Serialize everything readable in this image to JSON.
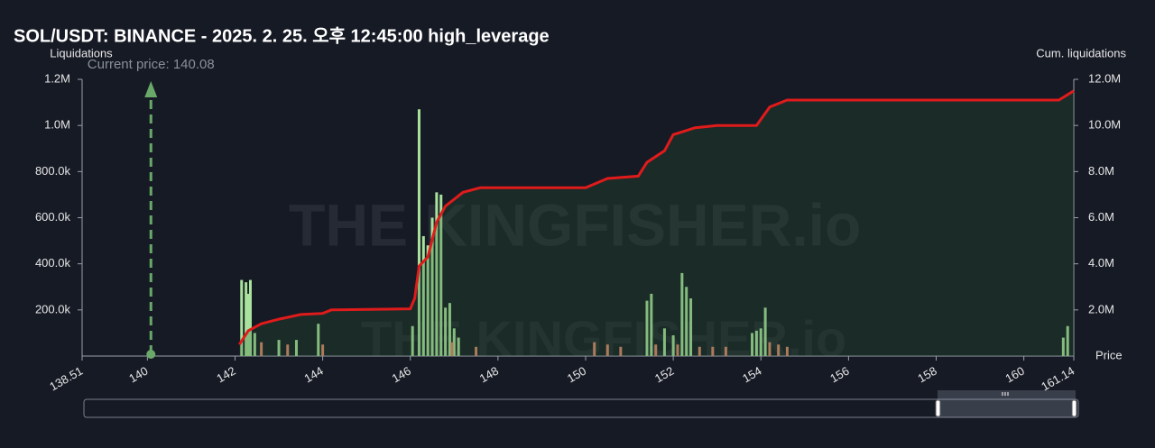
{
  "chart_data": {
    "type": "bar",
    "title": "SOL/USDT: BINANCE - 2025. 2. 25. 오후 12:45:00 high_leverage",
    "ylabel": "Liquidations",
    "y2label": "Cum. liquidations",
    "xlabel": "Price",
    "watermark": "THE KINGFISHER.io",
    "annotation": {
      "text": "Current price: 140.08",
      "x": 140.08,
      "color": "#6aa86a"
    },
    "xlim": [
      138.51,
      161.14
    ],
    "xticks": [
      138.51,
      140,
      142,
      144,
      146,
      148,
      150,
      152,
      154,
      156,
      158,
      160,
      161.14
    ],
    "ylim": [
      0,
      1200000
    ],
    "yticks": [
      {
        "value": 200000,
        "label": "200.0k"
      },
      {
        "value": 400000,
        "label": "400.0k"
      },
      {
        "value": 600000,
        "label": "600.0k"
      },
      {
        "value": 800000,
        "label": "800.0k"
      },
      {
        "value": 1000000,
        "label": "1.0M"
      },
      {
        "value": 1200000,
        "label": "1.2M"
      }
    ],
    "y2lim": [
      0,
      12000000
    ],
    "y2ticks": [
      {
        "value": 2000000,
        "label": "2.0M"
      },
      {
        "value": 4000000,
        "label": "4.0M"
      },
      {
        "value": 6000000,
        "label": "6.0M"
      },
      {
        "value": 8000000,
        "label": "8.0M"
      },
      {
        "value": 10000000,
        "label": "10.0M"
      },
      {
        "value": 12000000,
        "label": "12.0M"
      }
    ],
    "grid": false,
    "series": [
      {
        "type": "bar",
        "color": "#a9e29c",
        "x": [
          142.15,
          142.25,
          142.3,
          142.35,
          142.45,
          143.0,
          143.4,
          143.9,
          146.05,
          146.2,
          146.3,
          146.4,
          146.5,
          146.6,
          146.7,
          146.8,
          146.9,
          147.0,
          147.1,
          151.4,
          151.5,
          151.8,
          152.0,
          152.2,
          152.3,
          152.4,
          153.8,
          153.9,
          154.0,
          154.1,
          160.9,
          161.0
        ],
        "values": [
          330000,
          320000,
          270000,
          330000,
          100000,
          70000,
          70000,
          140000,
          130000,
          1070000,
          520000,
          480000,
          600000,
          710000,
          700000,
          210000,
          230000,
          120000,
          80000,
          240000,
          270000,
          120000,
          90000,
          360000,
          300000,
          250000,
          100000,
          110000,
          120000,
          210000,
          80000,
          130000
        ]
      },
      {
        "type": "bar",
        "color": "#e0886c",
        "x": [
          142.6,
          143.2,
          144.0,
          146.95,
          147.5,
          150.2,
          150.5,
          150.8,
          151.6,
          152.1,
          152.6,
          152.9,
          153.2,
          154.2,
          154.4,
          154.6
        ],
        "values": [
          60000,
          50000,
          50000,
          60000,
          40000,
          60000,
          50000,
          40000,
          50000,
          50000,
          40000,
          40000,
          40000,
          60000,
          50000,
          40000
        ]
      },
      {
        "type": "line",
        "axis": "y2",
        "color": "#e01b1b",
        "x": [
          142.1,
          142.3,
          142.6,
          143.0,
          143.5,
          144.0,
          144.2,
          146.0,
          146.1,
          146.2,
          146.4,
          146.6,
          146.8,
          147.2,
          147.6,
          150.0,
          150.5,
          151.2,
          151.4,
          151.8,
          152.0,
          152.5,
          153.0,
          153.9,
          154.2,
          154.6,
          160.8,
          161.14
        ],
        "values": [
          500000,
          1100000,
          1400000,
          1600000,
          1800000,
          1850000,
          2000000,
          2050000,
          2500000,
          3900000,
          4300000,
          5800000,
          6500000,
          7100000,
          7300000,
          7300000,
          7700000,
          7800000,
          8400000,
          8900000,
          9600000,
          9900000,
          10000000,
          10000000,
          10800000,
          11100000,
          11100000,
          11500000
        ]
      }
    ]
  }
}
